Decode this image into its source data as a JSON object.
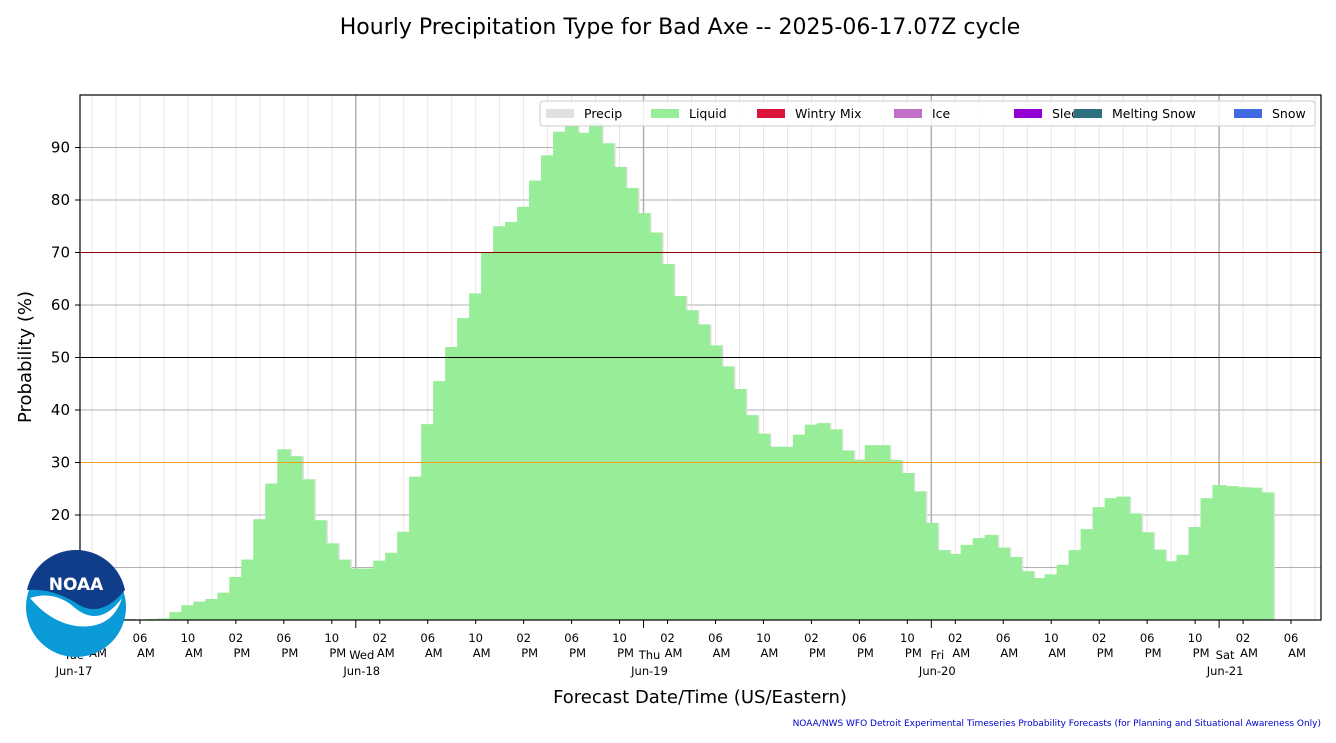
{
  "chart_data": {
    "type": "bar",
    "title": "Hourly Precipitation Type for Bad Axe -- 2025-06-17.07Z cycle",
    "xlabel": "Forecast Date/Time (US/Eastern)",
    "ylabel": "Probability (%)",
    "ylim": [
      0,
      100
    ],
    "yticks": [
      20,
      30,
      40,
      50,
      60,
      70,
      80,
      90
    ],
    "grid": true,
    "legend_position": "top-right",
    "start_time": "2025-06-17 03:00",
    "x_range_hours": [
      -1,
      102.5
    ],
    "threshold_lines": [
      {
        "value": 70,
        "color": "#8b0000"
      },
      {
        "value": 50,
        "color": "#000000"
      },
      {
        "value": 30,
        "color": "#f0a020"
      }
    ],
    "legend": [
      {
        "label": "Precip",
        "color": "#e0e0e0"
      },
      {
        "label": "Liquid",
        "color": "#98ee98"
      },
      {
        "label": "Wintry Mix",
        "color": "#dc143c"
      },
      {
        "label": "Ice",
        "color": "#c071c7"
      },
      {
        "label": "Sleet",
        "color": "#9400d3"
      },
      {
        "label": "Melting Snow",
        "color": "#2f7080"
      },
      {
        "label": "Snow",
        "color": "#4169e1"
      }
    ],
    "series": [
      {
        "name": "Liquid",
        "color": "#98ee98",
        "values": [
          0.3,
          0.2,
          0.3,
          0.2,
          0.1,
          0.2,
          0.3,
          1.5,
          2.8,
          3.5,
          4.0,
          5.2,
          8.2,
          11.5,
          19.2,
          26,
          32.5,
          31.2,
          26.8,
          19,
          14.6,
          11.5,
          9.8,
          9.8,
          11.3,
          12.8,
          16.8,
          27.3,
          37.3,
          45.5,
          52,
          57.5,
          62.2,
          70,
          75,
          75.8,
          78.7,
          83.7,
          88.5,
          93,
          94.2,
          92.8,
          94.7,
          90.8,
          86.3,
          82.3,
          77.5,
          73.8,
          67.8,
          61.7,
          59,
          56.3,
          52.3,
          48.3,
          44,
          39,
          35.5,
          33,
          33,
          35.3,
          37.2,
          37.5,
          36.3,
          32.3,
          30.5,
          33.3,
          33.3,
          30.5,
          28,
          24.5,
          18.5,
          13.3,
          12.6,
          14.3,
          15.6,
          16.2,
          13.8,
          12,
          9.3,
          8,
          8.7,
          10.5,
          13.3,
          17.3,
          21.5,
          23.2,
          23.5,
          20.3,
          16.7,
          13.4,
          11.2,
          12.4,
          17.7,
          23.2,
          25.7,
          25.5,
          25.3,
          25.2,
          24.3
        ]
      }
    ],
    "x_tick_labels": [
      {
        "hour": 0,
        "time": "02",
        "ampm": "AM"
      },
      {
        "hour": 4,
        "time": "06",
        "ampm": "AM"
      },
      {
        "hour": 8,
        "time": "10",
        "ampm": "AM"
      },
      {
        "hour": 12,
        "time": "02",
        "ampm": "PM"
      },
      {
        "hour": 16,
        "time": "06",
        "ampm": "PM"
      },
      {
        "hour": 20,
        "time": "10",
        "ampm": "PM"
      },
      {
        "hour": 24,
        "time": "02",
        "ampm": "AM"
      },
      {
        "hour": 28,
        "time": "06",
        "ampm": "AM"
      },
      {
        "hour": 32,
        "time": "10",
        "ampm": "AM"
      },
      {
        "hour": 36,
        "time": "02",
        "ampm": "PM"
      },
      {
        "hour": 40,
        "time": "06",
        "ampm": "PM"
      },
      {
        "hour": 44,
        "time": "10",
        "ampm": "PM"
      },
      {
        "hour": 48,
        "time": "02",
        "ampm": "AM"
      },
      {
        "hour": 52,
        "time": "06",
        "ampm": "AM"
      },
      {
        "hour": 56,
        "time": "10",
        "ampm": "AM"
      },
      {
        "hour": 60,
        "time": "02",
        "ampm": "PM"
      },
      {
        "hour": 64,
        "time": "06",
        "ampm": "PM"
      },
      {
        "hour": 68,
        "time": "10",
        "ampm": "PM"
      },
      {
        "hour": 72,
        "time": "02",
        "ampm": "AM"
      },
      {
        "hour": 76,
        "time": "06",
        "ampm": "AM"
      },
      {
        "hour": 80,
        "time": "10",
        "ampm": "AM"
      },
      {
        "hour": 84,
        "time": "02",
        "ampm": "PM"
      },
      {
        "hour": 88,
        "time": "06",
        "ampm": "PM"
      },
      {
        "hour": 92,
        "time": "10",
        "ampm": "PM"
      },
      {
        "hour": 96,
        "time": "02",
        "ampm": "AM"
      },
      {
        "hour": 100,
        "time": "06",
        "ampm": "AM"
      }
    ],
    "day_labels": [
      {
        "hour": -2,
        "day": "Tue",
        "date": "Jun-17"
      },
      {
        "hour": 22,
        "day": "Wed",
        "date": "Jun-18"
      },
      {
        "hour": 46,
        "day": "Thu",
        "date": "Jun-19"
      },
      {
        "hour": 70,
        "day": "Fri",
        "date": "Jun-20"
      },
      {
        "hour": 94,
        "day": "Sat",
        "date": "Jun-21"
      }
    ]
  },
  "logo": {
    "text": "NOAA"
  },
  "footer": "NOAA/NWS WFO Detroit Experimental Timeseries Probability Forecasts (for Planning and Situational Awareness Only)"
}
